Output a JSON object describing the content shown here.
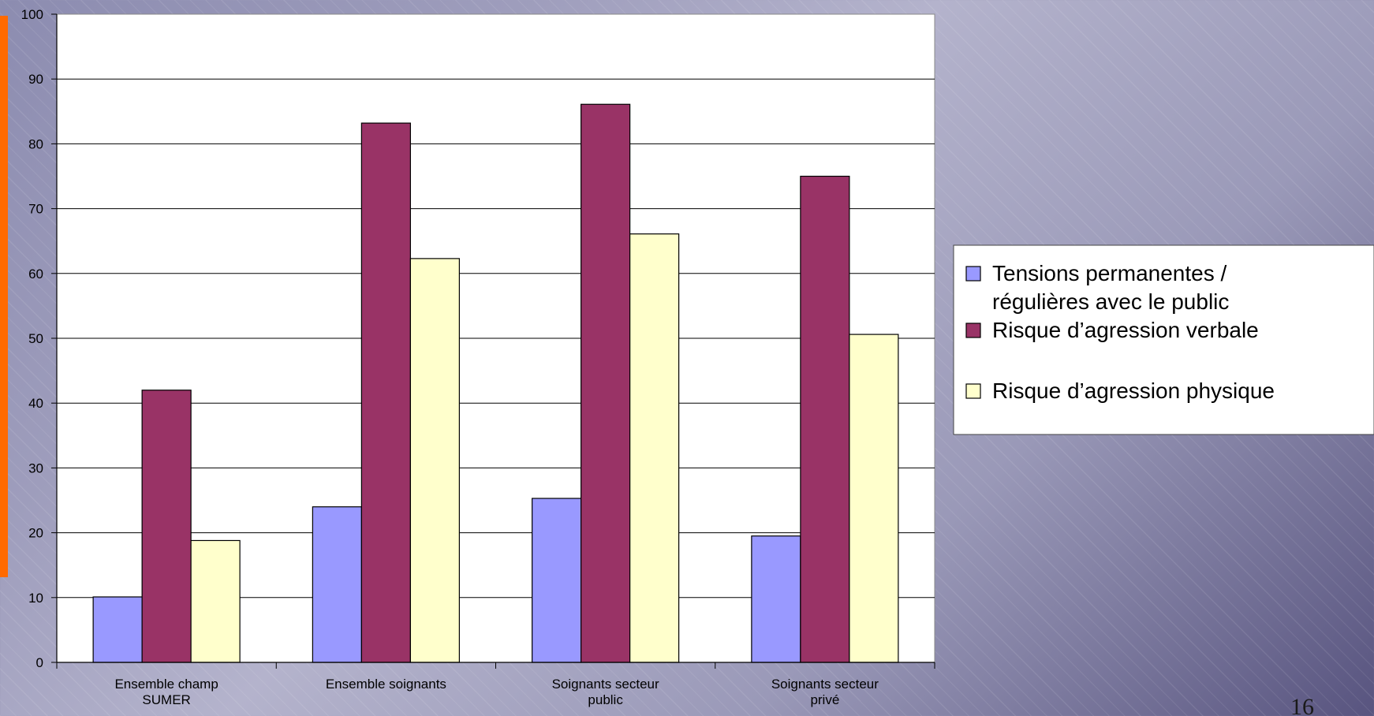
{
  "slide": {
    "page_number": "16",
    "accent_color": "#ff6a00"
  },
  "chart_data": {
    "type": "bar",
    "title": "",
    "xlabel": "",
    "ylabel": "",
    "ylim": [
      0,
      100
    ],
    "yticks": [
      0,
      10,
      20,
      30,
      40,
      50,
      60,
      70,
      80,
      90,
      100
    ],
    "grid": true,
    "legend_position": "right",
    "categories": [
      [
        "Ensemble champ",
        "SUMER"
      ],
      [
        "Ensemble soignants"
      ],
      [
        "Soignants secteur",
        "public"
      ],
      [
        "Soignants secteur",
        "privé"
      ]
    ],
    "series": [
      {
        "name": "Tensions permanentes / régulières avec le public",
        "name_lines": [
          "Tensions permanentes /",
          "régulières avec le public"
        ],
        "color": "#9999ff",
        "values": [
          10.1,
          24.0,
          25.3,
          19.5
        ]
      },
      {
        "name": "Risque d’agression verbale",
        "name_lines": [
          "Risque d’agression verbale"
        ],
        "color": "#993366",
        "values": [
          42.0,
          83.2,
          86.1,
          75.0
        ]
      },
      {
        "name": "Risque d’agression physique",
        "name_lines": [
          "Risque d’agression physique"
        ],
        "color": "#ffffcc",
        "values": [
          18.8,
          62.3,
          66.1,
          50.6
        ]
      }
    ]
  }
}
